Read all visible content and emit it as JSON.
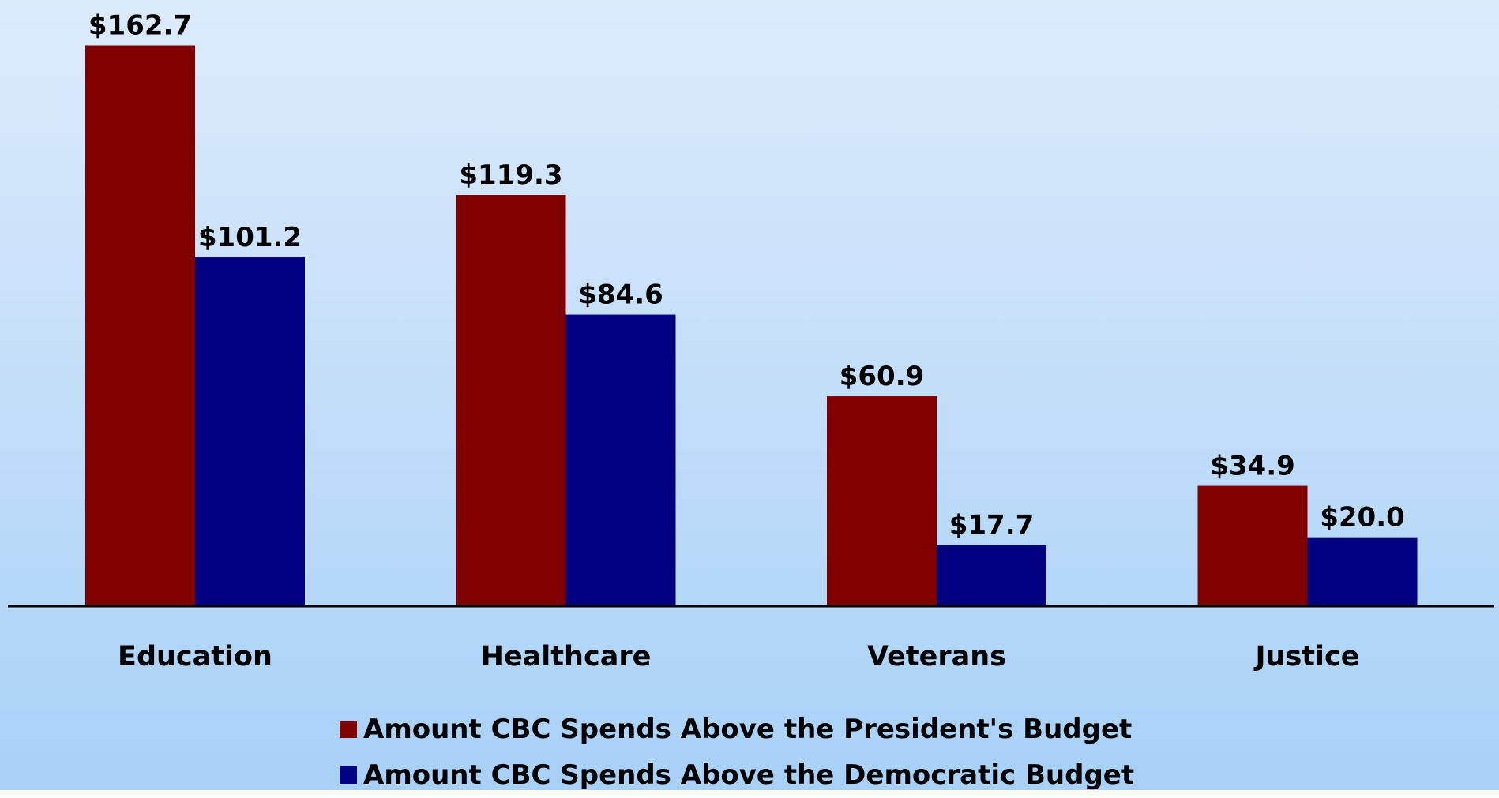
{
  "chart_data": {
    "type": "bar",
    "categories": [
      "Education",
      "Healthcare",
      "Veterans",
      "Justice"
    ],
    "series": [
      {
        "name": "Amount CBC Spends Above the President's Budget",
        "values": [
          162.7,
          119.3,
          60.9,
          34.9
        ],
        "labels": [
          "$162.7",
          "$119.3",
          "$60.9",
          "$34.9"
        ],
        "color": "#800000"
      },
      {
        "name": "Amount CBC Spends Above the Democratic Budget",
        "values": [
          101.2,
          84.6,
          17.7,
          20.0
        ],
        "labels": [
          "$101.2",
          "$84.6",
          "$17.7",
          "$20.0"
        ],
        "color": "#000080"
      }
    ],
    "ylim": [
      0,
      175
    ],
    "grid": false,
    "legend_position": "bottom",
    "background": [
      "#dcebfc",
      "#a8d1f8"
    ]
  }
}
